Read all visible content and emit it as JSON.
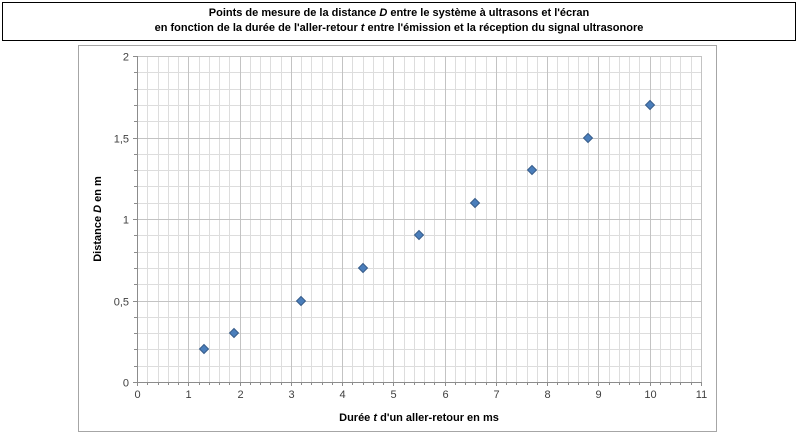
{
  "header": {
    "line1_segments": [
      {
        "text": "Points de mesure de la distance "
      },
      {
        "text": "D",
        "italic": true
      },
      {
        "text": " entre le système à ultrasons et l'écran"
      }
    ],
    "line2_segments": [
      {
        "text": "en fonction de la durée de l'aller-retour "
      },
      {
        "text": "t",
        "italic": true
      },
      {
        "text": " entre l'émission et la réception du signal ultrasonore"
      }
    ]
  },
  "chart_data": {
    "type": "scatter",
    "points": [
      {
        "x": 1.3,
        "y": 0.2
      },
      {
        "x": 1.9,
        "y": 0.3
      },
      {
        "x": 3.2,
        "y": 0.5
      },
      {
        "x": 4.4,
        "y": 0.7
      },
      {
        "x": 5.5,
        "y": 0.9
      },
      {
        "x": 6.6,
        "y": 1.1
      },
      {
        "x": 7.7,
        "y": 1.3
      },
      {
        "x": 8.8,
        "y": 1.5
      },
      {
        "x": 10.0,
        "y": 1.7
      }
    ],
    "xlabel_segments": [
      {
        "text": "Durée "
      },
      {
        "text": "t",
        "italic": true
      },
      {
        "text": " d'un aller-retour en ms"
      }
    ],
    "ylabel_segments": [
      {
        "text": "Distance "
      },
      {
        "text": "D",
        "italic": true
      },
      {
        "text": " en m"
      }
    ],
    "xlim": [
      0,
      11
    ],
    "ylim": [
      0,
      2
    ],
    "x_major_step": 1,
    "x_minor_step": 0.2,
    "y_major_step": 0.5,
    "y_minor_step": 0.1,
    "x_tick_labels": [
      "0",
      "1",
      "2",
      "3",
      "4",
      "5",
      "6",
      "7",
      "8",
      "9",
      "10",
      "11"
    ],
    "y_tick_labels": [
      "0",
      "0,5",
      "1",
      "1,5",
      "2"
    ],
    "grid": true,
    "legend": "none",
    "marker": "diamond",
    "colors": {
      "marker_fill": "#4A7EBB",
      "marker_stroke": "#385D8A",
      "grid_minor": "#DDDDDD",
      "grid_major": "#C3C3C3",
      "axis_line": "#8C8C8C",
      "tick_label": "#3F3F3F",
      "axis_title": "#000000"
    }
  }
}
